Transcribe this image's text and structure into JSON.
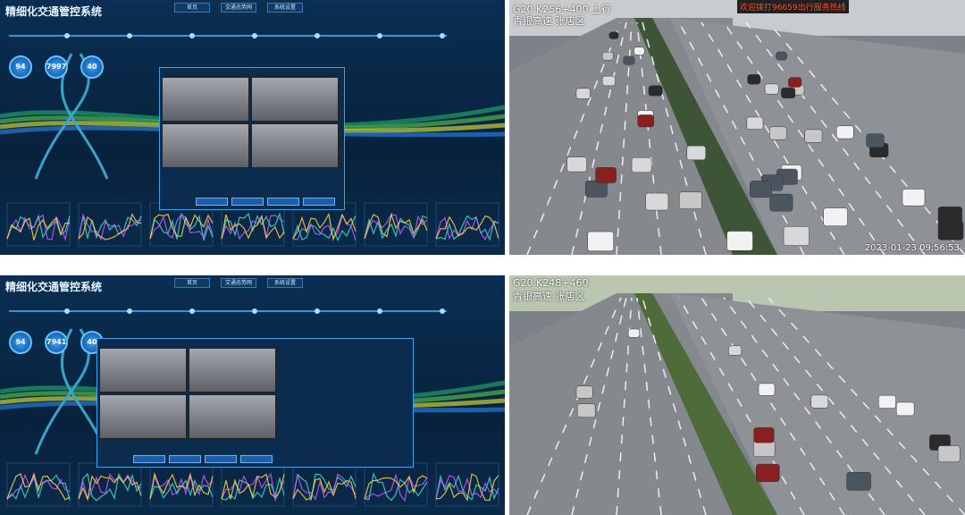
{
  "panels": [
    {
      "title": "精细化交通管控系统",
      "nav": [
        "首页",
        "交通态势网",
        "系统设置"
      ],
      "stats": [
        94,
        7997,
        40
      ]
    },
    {
      "title": "精细化交通管控系统",
      "nav": [
        "首页",
        "交通态势网",
        "系统设置"
      ],
      "stats": [
        94,
        7941,
        40
      ]
    }
  ],
  "cameras": [
    {
      "location": "G20 K256+400 上行",
      "road": "青银高速 张店区",
      "banner": "欢迎拨打96659出行服务热线",
      "timestamp": "2023-01-23 09:56:53"
    },
    {
      "location": "G20 K248+460",
      "road": "青银高速 张店区"
    }
  ]
}
